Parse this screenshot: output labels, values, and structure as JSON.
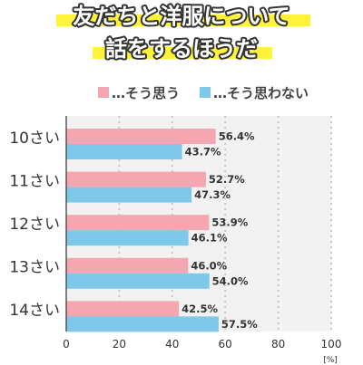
{
  "title_lines": [
    "友だちと洋服について",
    "話をするほうだ"
  ],
  "colors": {
    "title_highlight": "#fff23a",
    "title_stroke": "#333333",
    "series_pink": "#f4a6b1",
    "series_blue": "#7ec8ea",
    "plot_bg": "#f2f2f2",
    "grid": "#c8c8c8",
    "axis": "#333333"
  },
  "chart_data": {
    "type": "bar",
    "orientation": "horizontal",
    "categories": [
      "10さい",
      "11さい",
      "12さい",
      "13さい",
      "14さい"
    ],
    "series": [
      {
        "name": "…そう思う",
        "color": "#f4a6b1",
        "values": [
          56.4,
          52.7,
          53.9,
          46.0,
          42.5
        ],
        "labels": [
          "56.4%",
          "52.7%",
          "53.9%",
          "46.0%",
          "42.5%"
        ]
      },
      {
        "name": "…そう思わない",
        "color": "#7ec8ea",
        "values": [
          43.7,
          47.3,
          46.1,
          54.0,
          57.5
        ],
        "labels": [
          "43.7%",
          "47.3%",
          "46.1%",
          "54.0%",
          "57.5%"
        ]
      }
    ],
    "xlim": [
      0,
      100
    ],
    "xticks": [
      0,
      20,
      40,
      60,
      80,
      100
    ],
    "xtick_labels": [
      "0",
      "20",
      "40",
      "60",
      "80",
      "100"
    ],
    "unit": "[%]",
    "grid": "dotted vertical",
    "legend_position": "top-right"
  }
}
